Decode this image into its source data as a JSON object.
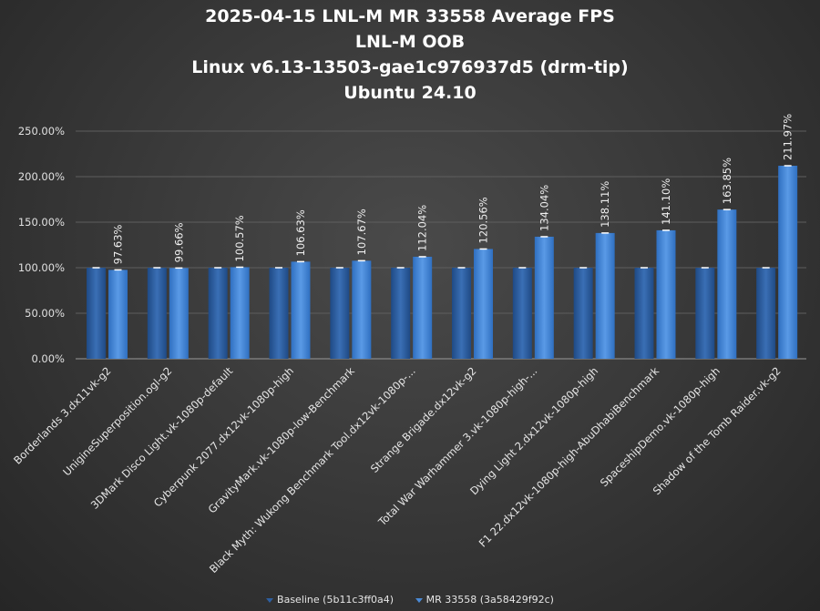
{
  "chart_data": {
    "type": "bar",
    "title_lines": [
      "2025-04-15 LNL-M MR 33558 Average FPS",
      "LNL-M OOB",
      "Linux v6.13-13503-gae1c976937d5 (drm-tip)",
      "Ubuntu 24.10"
    ],
    "categories": [
      "Borderlands 3.dx11vk-g2",
      "UnigineSuperposition.ogl-g2",
      "3DMark Disco Light.vk-1080p-default",
      "Cyberpunk 2077.dx12vk-1080p-high",
      "GravityMark.vk-1080p-low-Benchmark",
      "Black Myth: Wukong Benchmark Tool.dx12vk-1080p-...",
      "Strange Brigade.dx12vk-g2",
      "Total War Warhammer 3.vk-1080p-high-...",
      "Dying Light 2.dx12vk-1080p-high",
      "F1 22.dx12vk-1080p-high-AbuDhabiBenchmark",
      "SpaceshipDemo.vk-1080p-high",
      "Shadow of the Tomb Raider.vk-g2"
    ],
    "series": [
      {
        "name": "Baseline (5b11c3ff0a4)",
        "color": "#2e5fa0",
        "values": [
          100,
          100,
          100,
          100,
          100,
          100,
          100,
          100,
          100,
          100,
          100,
          100
        ]
      },
      {
        "name": "MR 33558 (3a58429f92c)",
        "color": "#4a8ad6",
        "values": [
          97.63,
          99.66,
          100.57,
          106.63,
          107.67,
          112.04,
          120.56,
          134.04,
          138.11,
          141.1,
          163.85,
          211.97
        ],
        "data_labels": [
          "97.63%",
          "99.66%",
          "100.57%",
          "106.63%",
          "107.67%",
          "112.04%",
          "120.56%",
          "134.04%",
          "138.11%",
          "141.10%",
          "163.85%",
          "211.97%"
        ]
      }
    ],
    "y_ticks": [
      "0.00%",
      "50.00%",
      "100.00%",
      "150.00%",
      "200.00%",
      "250.00%"
    ],
    "ylim": [
      0,
      250
    ],
    "grid": true,
    "legend_position": "bottom"
  }
}
